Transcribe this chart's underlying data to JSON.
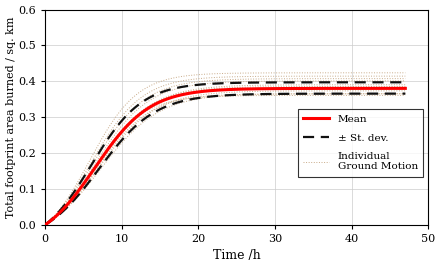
{
  "title": "",
  "xlabel": "Time /h",
  "ylabel": "Total footprint area burned / sq. km",
  "xlim": [
    0,
    47
  ],
  "ylim": [
    0,
    0.6
  ],
  "xticks": [
    0,
    10,
    20,
    30,
    40,
    50
  ],
  "yticks": [
    0.0,
    0.1,
    0.2,
    0.3,
    0.4,
    0.5,
    0.6
  ],
  "mean_color": "#ff0000",
  "std_color": "#111111",
  "indiv_color": "#c8aa88",
  "background_color": "#ffffff",
  "mean_lw": 2.2,
  "std_lw": 1.6,
  "indiv_lw": 0.7,
  "mean_L": 0.442,
  "mean_k": 0.28,
  "mean_t0": 6.5,
  "std_upper_L": 0.463,
  "std_upper_k": 0.3,
  "std_upper_t0": 6.0,
  "std_lower_L": 0.421,
  "std_lower_k": 0.27,
  "std_lower_t0": 7.0,
  "indiv_Ls": [
    0.49,
    0.483,
    0.475,
    0.468,
    0.458,
    0.448,
    0.438,
    0.43,
    0.422,
    0.416,
    0.412
  ],
  "indiv_ks": [
    0.32,
    0.3,
    0.29,
    0.28,
    0.27,
    0.28,
    0.28,
    0.27,
    0.26,
    0.29,
    0.31
  ],
  "indiv_t0s": [
    5.8,
    6.0,
    6.2,
    6.4,
    6.5,
    6.5,
    6.8,
    7.0,
    7.2,
    6.8,
    6.3
  ]
}
